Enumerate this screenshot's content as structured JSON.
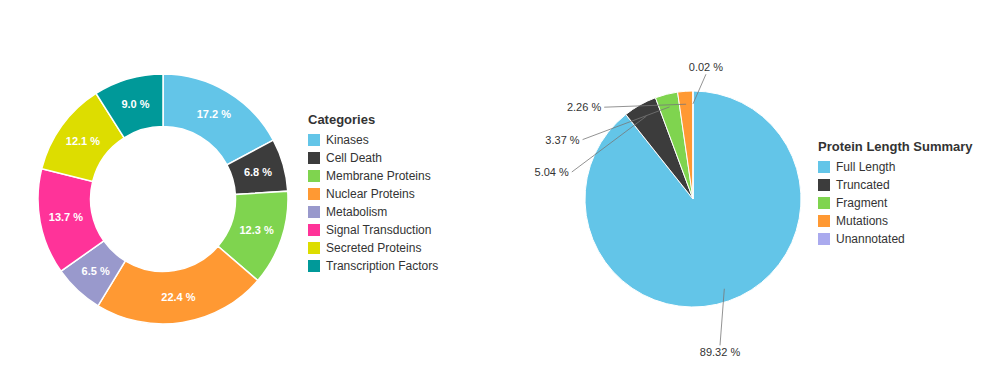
{
  "chart_data": [
    {
      "type": "donut",
      "title": "Categories",
      "categories": [
        "Kinases",
        "Cell Death",
        "Membrane Proteins",
        "Nuclear Proteins",
        "Metabolism",
        "Signal Transduction",
        "Secreted Proteins",
        "Transcription Factors"
      ],
      "values": [
        17.2,
        6.8,
        12.3,
        22.4,
        6.5,
        13.7,
        12.1,
        9.0
      ],
      "value_labels": [
        "17.2 %",
        "6.8 %",
        "12.3 %",
        "22.4 %",
        "6.5 %",
        "13.7 %",
        "12.1 %",
        "9.0 %"
      ],
      "colors": [
        "#63C5E8",
        "#3C3C3C",
        "#7FD44F",
        "#FF9933",
        "#9999CC",
        "#FF3399",
        "#DDDD00",
        "#009999"
      ],
      "data_labels": true,
      "legend": "right"
    },
    {
      "type": "pie",
      "title": "Protein Length Summary",
      "categories": [
        "Full Length",
        "Truncated",
        "Fragment",
        "Mutations",
        "Unannotated"
      ],
      "values": [
        89.32,
        5.04,
        3.37,
        2.26,
        0.02
      ],
      "value_labels": [
        "89.32 %",
        "5.04 %",
        "3.37 %",
        "2.26 %",
        "0.02 %"
      ],
      "colors": [
        "#63C5E8",
        "#3C3C3C",
        "#7FD44F",
        "#FF9933",
        "#AAAAEE"
      ],
      "data_labels": true,
      "legend": "right"
    }
  ]
}
